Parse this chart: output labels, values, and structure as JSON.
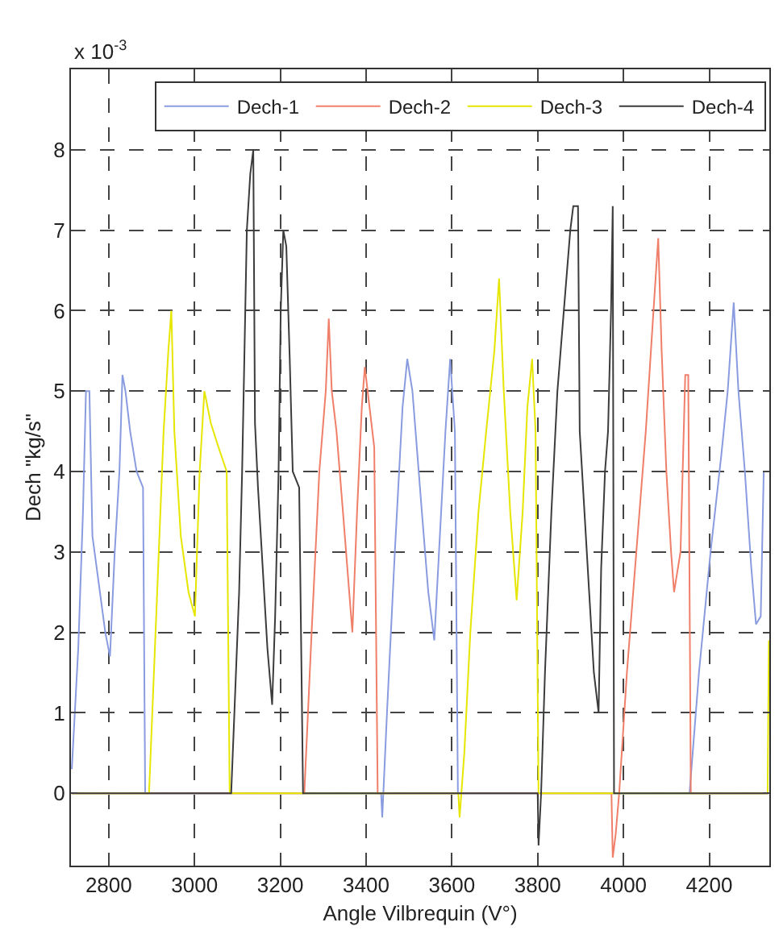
{
  "chart_data": {
    "type": "line",
    "xlabel": "Angle Vilbrequin (V°)",
    "ylabel": "Dech \"kg/s\"",
    "annotations": [
      "x 10$^{-3}$"
    ],
    "xlim": [
      2712,
      4340
    ],
    "xticks": [
      2800,
      3000,
      3200,
      3400,
      3600,
      3800,
      4000,
      4200
    ],
    "ylim": [
      -0.9,
      9
    ],
    "yticks": [
      0,
      1,
      2,
      3,
      4,
      5,
      6,
      7,
      8
    ],
    "grid": true,
    "legend": "top right",
    "marker": "none",
    "line_style": "solid",
    "series": [
      {
        "name": "Dech-1",
        "color": "#8a9ce0",
        "x": [
          2714,
          2729,
          2740,
          2747,
          2755,
          2762,
          2777,
          2792,
          2803,
          2814,
          2825,
          2832,
          2839,
          2850,
          2865,
          2880,
          2885,
          3435,
          3437.7,
          3448.7,
          3467,
          3485,
          3496,
          3508,
          3530,
          3545,
          3559,
          3570,
          3585,
          3596,
          3607,
          3614,
          4154,
          4176,
          4203,
          4228,
          4243,
          4257,
          4268,
          4283,
          4298,
          4309,
          4320,
          4327,
          4338
        ],
        "values": [
          0.3,
          1.8,
          3.5,
          5.0,
          5.0,
          3.2,
          2.6,
          2.0,
          1.7,
          3.0,
          4.0,
          5.2,
          5.0,
          4.5,
          4.0,
          3.8,
          0,
          0,
          -0.3,
          1,
          3,
          4.8,
          5.4,
          5.0,
          3.5,
          2.5,
          1.9,
          3.0,
          4.5,
          5.4,
          4.5,
          0,
          0,
          1.5,
          3,
          4.2,
          5,
          6.1,
          5.0,
          4,
          2.8,
          2.1,
          2.2,
          4.0,
          4.0
        ]
      },
      {
        "name": "Dech-2",
        "color": "#f07f6a",
        "x": [
          2714,
          3256,
          3273,
          3291,
          3306,
          3313,
          3320,
          3331,
          3346,
          3368,
          3379,
          3390,
          3397,
          3408,
          3419,
          3427,
          3972,
          3975,
          3982,
          3990,
          4008,
          4030,
          4052,
          4070,
          4081,
          4089,
          4100,
          4111,
          4118,
          4133,
          4144,
          4151,
          4157,
          4338
        ],
        "values": [
          0,
          0,
          2,
          4,
          5,
          5.9,
          5,
          4.5,
          3.5,
          2.0,
          3.5,
          4.8,
          5.3,
          4.8,
          4.3,
          0,
          0,
          -0.8,
          -0.5,
          0,
          1.5,
          3,
          4.5,
          6,
          6.9,
          5.5,
          4,
          3,
          2.5,
          3.0,
          5.2,
          5.2,
          0,
          0
        ]
      },
      {
        "name": "Dech-3",
        "color": "#e6e600",
        "x": [
          2714,
          2894,
          2913,
          2928,
          2939,
          2946,
          2953,
          2968,
          2986,
          3001,
          3012,
          3023,
          3038,
          3056,
          3075,
          3082,
          3615,
          3618,
          3629,
          3643,
          3662,
          3680,
          3699,
          3710,
          3721,
          3736,
          3751,
          3765,
          3776,
          3787,
          3795,
          3802,
          4336,
          4339
        ],
        "values": [
          0,
          0,
          2.5,
          4.5,
          5.5,
          6.0,
          4.5,
          3.2,
          2.5,
          2.2,
          4.0,
          5.0,
          4.6,
          4.3,
          4.0,
          0,
          0,
          -0.3,
          0.5,
          2,
          3.5,
          4.5,
          5.5,
          6.4,
          5,
          3.5,
          2.4,
          3.5,
          4.8,
          5.4,
          4.5,
          0,
          0,
          1.9
        ]
      },
      {
        "name": "Dech-4",
        "color": "#3c3c3c",
        "x": [
          2714,
          3085.5,
          3093,
          3104,
          3111,
          3122,
          3130,
          3137,
          3141,
          3148,
          3159,
          3170,
          3181,
          3188,
          3196,
          3201,
          3207,
          3214,
          3222,
          3229,
          3244,
          3253,
          3800,
          3802,
          3808,
          3817,
          3832,
          3846,
          3861,
          3876,
          3883,
          3894,
          3898,
          3909,
          3920,
          3931,
          3942,
          3948,
          3957,
          3964,
          3971,
          3975,
          3978,
          4338
        ],
        "values": [
          0,
          0,
          1,
          2.5,
          4.0,
          7.0,
          7.7,
          8.0,
          4.6,
          3.8,
          2.8,
          1.8,
          1.1,
          2.2,
          4,
          6.0,
          7.0,
          6.8,
          5.4,
          4.0,
          3.8,
          0,
          0,
          -0.65,
          0,
          1.5,
          3.5,
          5,
          6.0,
          7.0,
          7.3,
          7.3,
          4.5,
          3.5,
          2.5,
          1.5,
          1.0,
          2.8,
          4.0,
          4.5,
          6.0,
          7.3,
          0,
          0
        ]
      }
    ]
  }
}
